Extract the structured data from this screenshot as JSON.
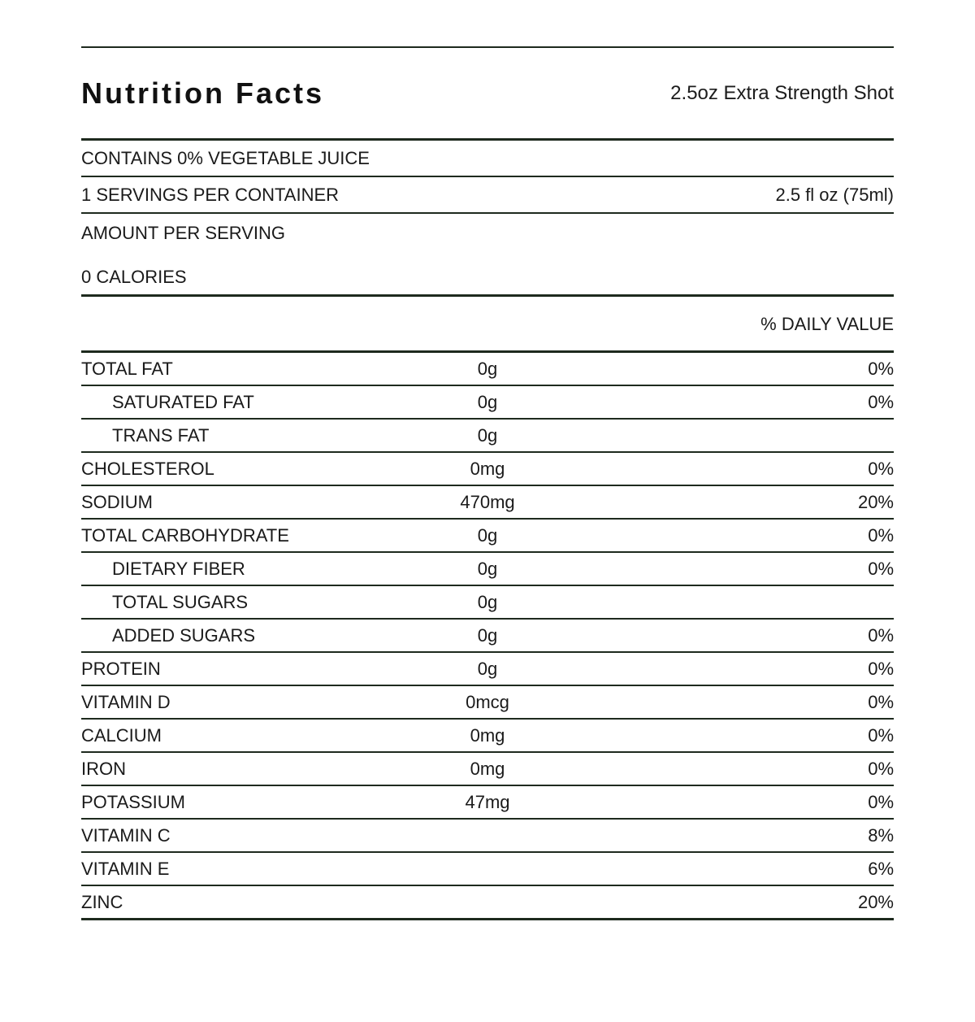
{
  "label": {
    "title": "Nutrition Facts",
    "serving_title": "2.5oz Extra Strength Shot",
    "contains_statement": "CONTAINS 0% VEGETABLE JUICE",
    "servings_per_container": "1 SERVINGS PER CONTAINER",
    "serving_size": "2.5 fl oz (75ml)",
    "amount_per_serving": "AMOUNT PER SERVING",
    "calories": "0 CALORIES",
    "daily_value_header": "% DAILY VALUE",
    "colors": {
      "rule": "#1e2a1e",
      "text": "#1a1a1a",
      "background": "#ffffff"
    }
  },
  "nutrients": [
    {
      "name": "TOTAL FAT",
      "amount": "0g",
      "daily_value": "0%",
      "indent": false
    },
    {
      "name": "SATURATED FAT",
      "amount": "0g",
      "daily_value": "0%",
      "indent": true
    },
    {
      "name": "TRANS FAT",
      "amount": "0g",
      "daily_value": "",
      "indent": true
    },
    {
      "name": "CHOLESTEROL",
      "amount": "0mg",
      "daily_value": "0%",
      "indent": false
    },
    {
      "name": "SODIUM",
      "amount": "470mg",
      "daily_value": "20%",
      "indent": false
    },
    {
      "name": "TOTAL CARBOHYDRATE",
      "amount": "0g",
      "daily_value": "0%",
      "indent": false
    },
    {
      "name": "DIETARY FIBER",
      "amount": "0g",
      "daily_value": "0%",
      "indent": true
    },
    {
      "name": "TOTAL SUGARS",
      "amount": "0g",
      "daily_value": "",
      "indent": true
    },
    {
      "name": "ADDED SUGARS",
      "amount": "0g",
      "daily_value": "0%",
      "indent": true
    },
    {
      "name": "PROTEIN",
      "amount": "0g",
      "daily_value": "0%",
      "indent": false
    },
    {
      "name": "VITAMIN D",
      "amount": "0mcg",
      "daily_value": "0%",
      "indent": false
    },
    {
      "name": "CALCIUM",
      "amount": "0mg",
      "daily_value": "0%",
      "indent": false
    },
    {
      "name": "IRON",
      "amount": "0mg",
      "daily_value": "0%",
      "indent": false
    },
    {
      "name": "POTASSIUM",
      "amount": "47mg",
      "daily_value": "0%",
      "indent": false
    },
    {
      "name": "VITAMIN C",
      "amount": "",
      "daily_value": "8%",
      "indent": false
    },
    {
      "name": "VITAMIN E",
      "amount": "",
      "daily_value": "6%",
      "indent": false
    },
    {
      "name": "ZINC",
      "amount": "",
      "daily_value": "20%",
      "indent": false
    }
  ]
}
